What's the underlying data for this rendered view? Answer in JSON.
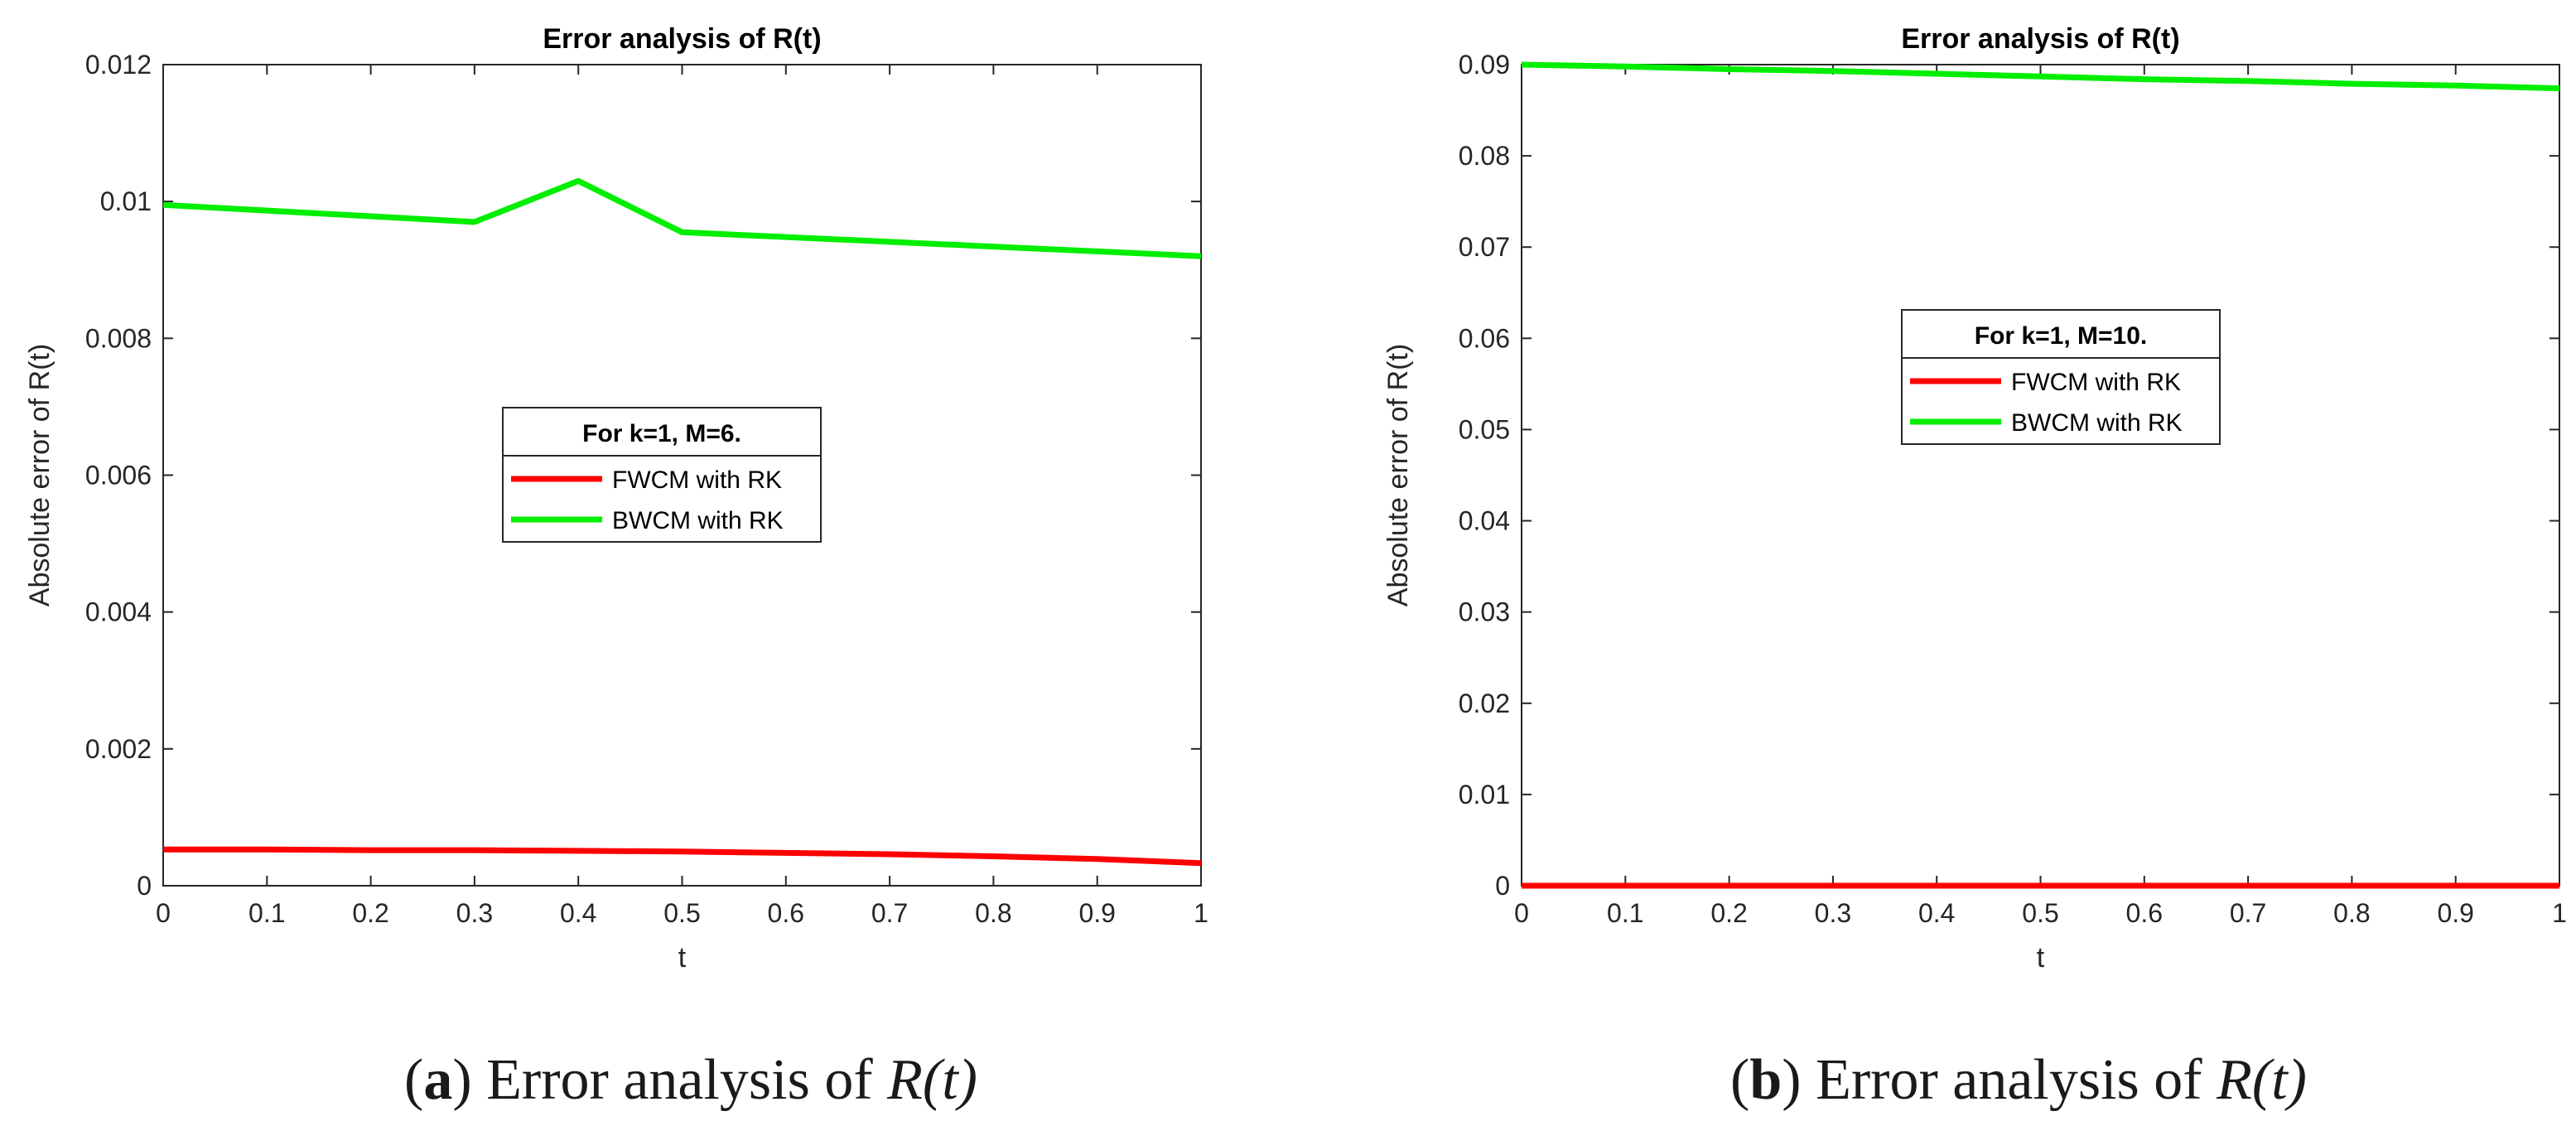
{
  "chart_data": [
    {
      "type": "line",
      "title": "Error analysis of R(t)",
      "xlabel": "t",
      "ylabel": "Absolute error of R(t)",
      "xlim": [
        0,
        1
      ],
      "ylim": [
        0,
        0.012
      ],
      "xticks": [
        "0",
        "0.1",
        "0.2",
        "0.3",
        "0.4",
        "0.5",
        "0.6",
        "0.7",
        "0.8",
        "0.9",
        "1"
      ],
      "yticks": [
        "0",
        "0.002",
        "0.004",
        "0.006",
        "0.008",
        "0.01",
        "0.012"
      ],
      "legend_title": "For k=1, M=6.",
      "legend_position": "center-left",
      "grid": false,
      "series": [
        {
          "name": "FWCM with RK",
          "color": "#ff0000",
          "x": [
            0,
            0.1,
            0.2,
            0.3,
            0.4,
            0.5,
            0.6,
            0.7,
            0.8,
            0.9,
            1
          ],
          "y": [
            0.00053,
            0.00053,
            0.00052,
            0.00052,
            0.00051,
            0.0005,
            0.00048,
            0.00046,
            0.00043,
            0.00039,
            0.00033
          ]
        },
        {
          "name": "BWCM with RK",
          "color": "#00ee00",
          "x": [
            0,
            0.3,
            0.4,
            0.5,
            1
          ],
          "y": [
            0.00995,
            0.0097,
            0.0103,
            0.00955,
            0.0092
          ]
        }
      ],
      "caption_label": "a",
      "caption_text": "Error analysis of",
      "caption_math": "R(t)"
    },
    {
      "type": "line",
      "title": "Error analysis of R(t)",
      "xlabel": "t",
      "ylabel": "Absolute error of R(t)",
      "xlim": [
        0,
        1
      ],
      "ylim": [
        0,
        0.09
      ],
      "xticks": [
        "0",
        "0.1",
        "0.2",
        "0.3",
        "0.4",
        "0.5",
        "0.6",
        "0.7",
        "0.8",
        "0.9",
        "1"
      ],
      "yticks": [
        "0",
        "0.01",
        "0.02",
        "0.03",
        "0.04",
        "0.05",
        "0.06",
        "0.07",
        "0.08",
        "0.09"
      ],
      "legend_title": "For k=1, M=10.",
      "legend_position": "center-left",
      "grid": false,
      "series": [
        {
          "name": "FWCM with RK",
          "color": "#ff0000",
          "x": [
            0,
            0.1,
            0.2,
            0.3,
            0.4,
            0.5,
            0.6,
            0.7,
            0.8,
            0.9,
            1
          ],
          "y": [
            0,
            0,
            0,
            0,
            0,
            0,
            0,
            0,
            0,
            0,
            0
          ]
        },
        {
          "name": "BWCM with RK",
          "color": "#00ee00",
          "x": [
            0,
            0.1,
            0.2,
            0.3,
            0.4,
            0.5,
            0.6,
            0.7,
            0.8,
            0.9,
            1
          ],
          "y": [
            0.09,
            0.0898,
            0.0895,
            0.0893,
            0.089,
            0.0887,
            0.0884,
            0.0882,
            0.0879,
            0.0877,
            0.0874
          ]
        }
      ],
      "caption_label": "b",
      "caption_text": "Error analysis of",
      "caption_math": "R(t)"
    }
  ]
}
